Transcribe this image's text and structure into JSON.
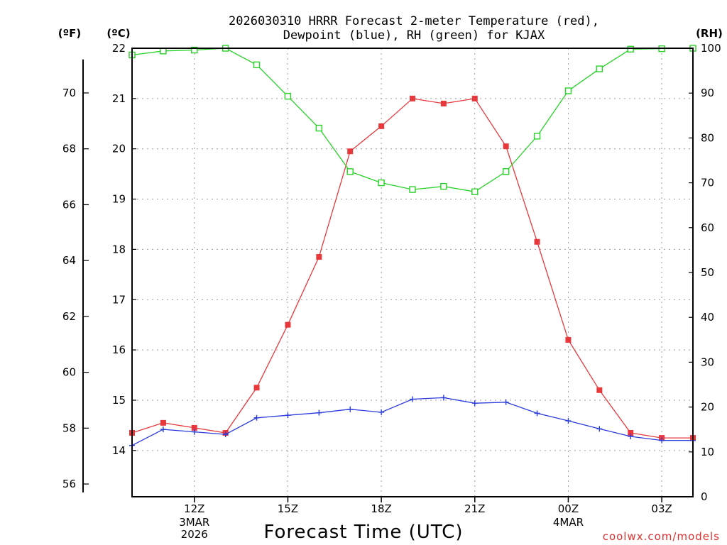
{
  "chart_data": {
    "type": "line",
    "title_line1": "2026030310 HRRR Forecast 2-meter Temperature (red),",
    "title_line2": "Dewpoint (blue), RH (green) for KJAX",
    "xlabel": "Forecast Time (UTC)",
    "credit": "coolwx.com/models",
    "units": {
      "fahrenheit": "(ºF)",
      "celsius": "(ºC)",
      "rh": "(RH)"
    },
    "x_hours": [
      10,
      11,
      12,
      13,
      14,
      15,
      16,
      17,
      18,
      19,
      20,
      21,
      22,
      23,
      24,
      25,
      26,
      27,
      28
    ],
    "xlim": [
      10,
      28
    ],
    "x_ticks": [
      {
        "hour": 12,
        "label": "12Z",
        "date": "3MAR",
        "year": "2026"
      },
      {
        "hour": 15,
        "label": "15Z"
      },
      {
        "hour": 18,
        "label": "18Z"
      },
      {
        "hour": 21,
        "label": "21Z"
      },
      {
        "hour": 24,
        "label": "00Z",
        "date": "4MAR"
      },
      {
        "hour": 27,
        "label": "03Z"
      }
    ],
    "celsius_axis": {
      "ylim": [
        13.08,
        22.0
      ],
      "ticks": [
        14,
        15,
        16,
        17,
        18,
        19,
        20,
        21,
        22
      ]
    },
    "fahrenheit_axis": {
      "ticks": [
        56,
        58,
        60,
        62,
        64,
        66,
        68,
        70
      ]
    },
    "rh_axis": {
      "ylim": [
        0,
        100
      ],
      "ticks": [
        0,
        10,
        20,
        30,
        40,
        50,
        60,
        70,
        80,
        90,
        100
      ]
    },
    "series": [
      {
        "name": "Temperature",
        "axis": "celsius",
        "color": "#e8383c",
        "marker": "filled-square",
        "values": [
          14.35,
          14.55,
          14.45,
          14.35,
          15.25,
          16.5,
          17.85,
          19.95,
          20.45,
          21.0,
          20.9,
          21.0,
          20.05,
          18.15,
          16.2,
          15.2,
          14.35,
          14.25,
          14.25
        ]
      },
      {
        "name": "Dewpoint",
        "axis": "celsius",
        "color": "#2a3cdc",
        "marker": "plus",
        "values": [
          14.1,
          14.42,
          14.37,
          14.32,
          14.65,
          14.7,
          14.75,
          14.82,
          14.76,
          15.02,
          15.05,
          14.94,
          14.96,
          14.74,
          14.59,
          14.43,
          14.28,
          14.2,
          14.2
        ]
      },
      {
        "name": "RH",
        "axis": "rh",
        "color": "#28d228",
        "marker": "open-square",
        "values": [
          98.5,
          99.4,
          99.6,
          100,
          96.3,
          89.3,
          82.2,
          72.5,
          70.0,
          68.5,
          69.2,
          68.0,
          72.5,
          80.4,
          90.5,
          95.4,
          99.8,
          99.9,
          100
        ]
      }
    ]
  }
}
